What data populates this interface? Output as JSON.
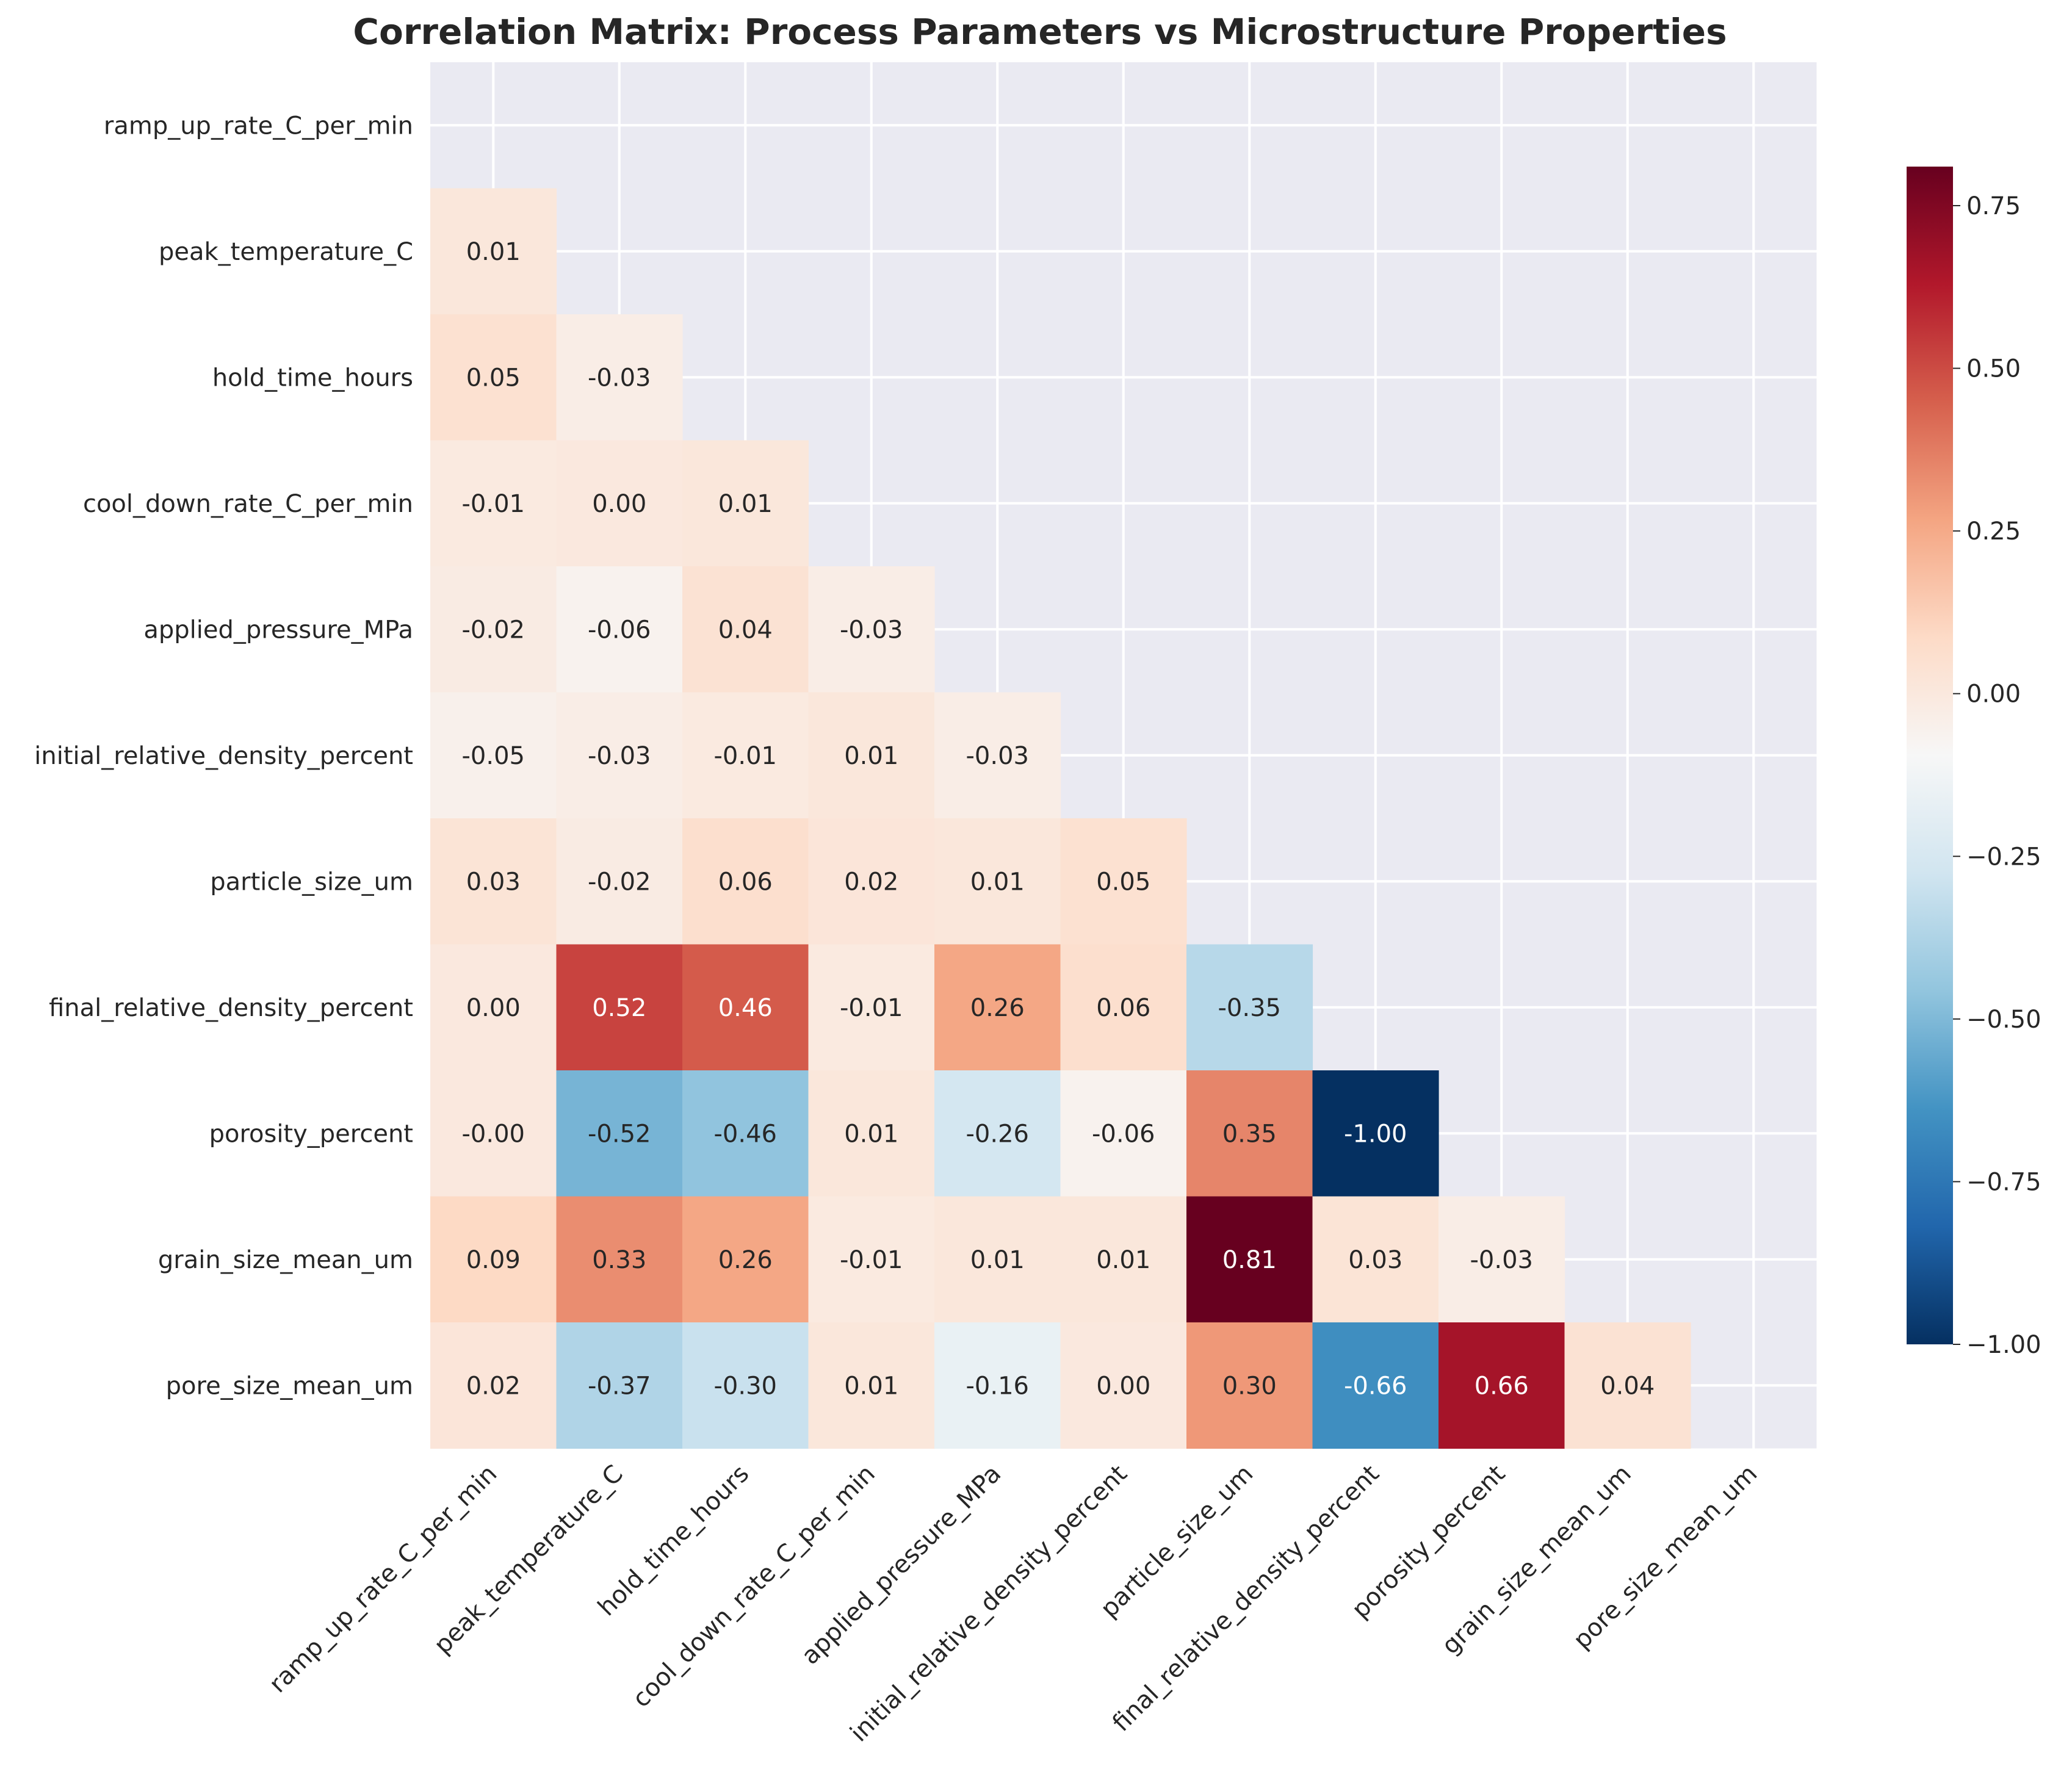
{
  "chart_data": {
    "type": "heatmap",
    "title": "Correlation Matrix: Process Parameters vs Microstructure Properties",
    "xlabel": "",
    "ylabel": "",
    "mask": "lower-triangle (cells on and above diagonal hidden)",
    "grid": true,
    "background_color": "#eaeaf2",
    "variables": [
      "ramp_up_rate_C_per_min",
      "peak_temperature_C",
      "hold_time_hours",
      "cool_down_rate_C_per_min",
      "applied_pressure_MPa",
      "initial_relative_density_percent",
      "particle_size_um",
      "final_relative_density_percent",
      "porosity_percent",
      "grain_size_mean_um",
      "pore_size_mean_um"
    ],
    "cells": [
      {
        "row": 1,
        "col": 0,
        "value": 0.01,
        "label": "0.01"
      },
      {
        "row": 2,
        "col": 0,
        "value": 0.05,
        "label": "0.05"
      },
      {
        "row": 2,
        "col": 1,
        "value": -0.03,
        "label": "-0.03"
      },
      {
        "row": 3,
        "col": 0,
        "value": -0.01,
        "label": "-0.01"
      },
      {
        "row": 3,
        "col": 1,
        "value": 0.0,
        "label": "0.00"
      },
      {
        "row": 3,
        "col": 2,
        "value": 0.01,
        "label": "0.01"
      },
      {
        "row": 4,
        "col": 0,
        "value": -0.02,
        "label": "-0.02"
      },
      {
        "row": 4,
        "col": 1,
        "value": -0.06,
        "label": "-0.06"
      },
      {
        "row": 4,
        "col": 2,
        "value": 0.04,
        "label": "0.04"
      },
      {
        "row": 4,
        "col": 3,
        "value": -0.03,
        "label": "-0.03"
      },
      {
        "row": 5,
        "col": 0,
        "value": -0.05,
        "label": "-0.05"
      },
      {
        "row": 5,
        "col": 1,
        "value": -0.03,
        "label": "-0.03"
      },
      {
        "row": 5,
        "col": 2,
        "value": -0.01,
        "label": "-0.01"
      },
      {
        "row": 5,
        "col": 3,
        "value": 0.01,
        "label": "0.01"
      },
      {
        "row": 5,
        "col": 4,
        "value": -0.03,
        "label": "-0.03"
      },
      {
        "row": 6,
        "col": 0,
        "value": 0.03,
        "label": "0.03"
      },
      {
        "row": 6,
        "col": 1,
        "value": -0.02,
        "label": "-0.02"
      },
      {
        "row": 6,
        "col": 2,
        "value": 0.06,
        "label": "0.06"
      },
      {
        "row": 6,
        "col": 3,
        "value": 0.02,
        "label": "0.02"
      },
      {
        "row": 6,
        "col": 4,
        "value": 0.01,
        "label": "0.01"
      },
      {
        "row": 6,
        "col": 5,
        "value": 0.05,
        "label": "0.05"
      },
      {
        "row": 7,
        "col": 0,
        "value": 0.0,
        "label": "0.00"
      },
      {
        "row": 7,
        "col": 1,
        "value": 0.52,
        "label": "0.52"
      },
      {
        "row": 7,
        "col": 2,
        "value": 0.46,
        "label": "0.46"
      },
      {
        "row": 7,
        "col": 3,
        "value": -0.01,
        "label": "-0.01"
      },
      {
        "row": 7,
        "col": 4,
        "value": 0.26,
        "label": "0.26"
      },
      {
        "row": 7,
        "col": 5,
        "value": 0.06,
        "label": "0.06"
      },
      {
        "row": 7,
        "col": 6,
        "value": -0.35,
        "label": "-0.35"
      },
      {
        "row": 8,
        "col": 0,
        "value": -0.0,
        "label": "-0.00"
      },
      {
        "row": 8,
        "col": 1,
        "value": -0.52,
        "label": "-0.52"
      },
      {
        "row": 8,
        "col": 2,
        "value": -0.46,
        "label": "-0.46"
      },
      {
        "row": 8,
        "col": 3,
        "value": 0.01,
        "label": "0.01"
      },
      {
        "row": 8,
        "col": 4,
        "value": -0.26,
        "label": "-0.26"
      },
      {
        "row": 8,
        "col": 5,
        "value": -0.06,
        "label": "-0.06"
      },
      {
        "row": 8,
        "col": 6,
        "value": 0.35,
        "label": "0.35"
      },
      {
        "row": 8,
        "col": 7,
        "value": -1.0,
        "label": "-1.00"
      },
      {
        "row": 9,
        "col": 0,
        "value": 0.09,
        "label": "0.09"
      },
      {
        "row": 9,
        "col": 1,
        "value": 0.33,
        "label": "0.33"
      },
      {
        "row": 9,
        "col": 2,
        "value": 0.26,
        "label": "0.26"
      },
      {
        "row": 9,
        "col": 3,
        "value": -0.01,
        "label": "-0.01"
      },
      {
        "row": 9,
        "col": 4,
        "value": 0.01,
        "label": "0.01"
      },
      {
        "row": 9,
        "col": 5,
        "value": 0.01,
        "label": "0.01"
      },
      {
        "row": 9,
        "col": 6,
        "value": 0.81,
        "label": "0.81"
      },
      {
        "row": 9,
        "col": 7,
        "value": 0.03,
        "label": "0.03"
      },
      {
        "row": 9,
        "col": 8,
        "value": -0.03,
        "label": "-0.03"
      },
      {
        "row": 10,
        "col": 0,
        "value": 0.02,
        "label": "0.02"
      },
      {
        "row": 10,
        "col": 1,
        "value": -0.37,
        "label": "-0.37"
      },
      {
        "row": 10,
        "col": 2,
        "value": -0.3,
        "label": "-0.30"
      },
      {
        "row": 10,
        "col": 3,
        "value": 0.01,
        "label": "0.01"
      },
      {
        "row": 10,
        "col": 4,
        "value": -0.16,
        "label": "-0.16"
      },
      {
        "row": 10,
        "col": 5,
        "value": 0.0,
        "label": "0.00"
      },
      {
        "row": 10,
        "col": 6,
        "value": 0.3,
        "label": "0.30"
      },
      {
        "row": 10,
        "col": 7,
        "value": -0.66,
        "label": "-0.66"
      },
      {
        "row": 10,
        "col": 8,
        "value": 0.66,
        "label": "0.66"
      },
      {
        "row": 10,
        "col": 9,
        "value": 0.04,
        "label": "0.04"
      }
    ],
    "colorbar": {
      "colormap": "RdBu_r",
      "vmin": -1.0,
      "vmax": 0.81,
      "ticks": [
        {
          "value": 0.75,
          "label": "0.75"
        },
        {
          "value": 0.5,
          "label": "0.50"
        },
        {
          "value": 0.25,
          "label": "0.25"
        },
        {
          "value": 0.0,
          "label": "0.00"
        },
        {
          "value": -0.25,
          "label": "−0.25"
        },
        {
          "value": -0.5,
          "label": "−0.50"
        },
        {
          "value": -0.75,
          "label": "−0.75"
        },
        {
          "value": -1.0,
          "label": "−1.00"
        }
      ],
      "stops": [
        {
          "t": 0.0,
          "color": "#053061"
        },
        {
          "t": 0.1,
          "color": "#2166ac"
        },
        {
          "t": 0.2,
          "color": "#4393c3"
        },
        {
          "t": 0.3,
          "color": "#92c5de"
        },
        {
          "t": 0.4,
          "color": "#d1e5f0"
        },
        {
          "t": 0.5,
          "color": "#f7f7f7"
        },
        {
          "t": 0.6,
          "color": "#fddbc7"
        },
        {
          "t": 0.7,
          "color": "#f4a582"
        },
        {
          "t": 0.8,
          "color": "#d6604d"
        },
        {
          "t": 0.9,
          "color": "#b2182b"
        },
        {
          "t": 1.0,
          "color": "#67001f"
        }
      ]
    }
  }
}
